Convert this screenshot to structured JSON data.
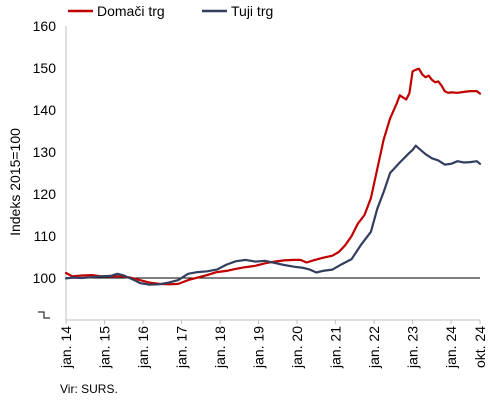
{
  "chart_data": {
    "type": "line",
    "ylabel": "Indeks 2015=100",
    "ylim": [
      90,
      160
    ],
    "yticks": [
      100,
      110,
      120,
      130,
      140,
      150,
      160
    ],
    "ytick_labels": [
      "100",
      "110",
      "120",
      "130",
      "140",
      "150",
      "160"
    ],
    "x_range": [
      "2014-01",
      "2024-10"
    ],
    "xtick_labels": [
      "jan. 14",
      "jan. 15",
      "jan. 16",
      "jan. 17",
      "jan. 18",
      "jan. 19",
      "jan. 20",
      "jan. 21",
      "jan. 22",
      "jan. 23",
      "jan. 24",
      "okt. 24"
    ],
    "xtick_dates": [
      "2014-01",
      "2015-01",
      "2016-01",
      "2017-01",
      "2018-01",
      "2019-01",
      "2020-01",
      "2021-01",
      "2022-01",
      "2023-01",
      "2024-01",
      "2024-10"
    ],
    "reference_line": 100,
    "axis_break": true,
    "legend_position": "top",
    "series": [
      {
        "name": "Domači trg",
        "color": "#C00000",
        "points": [
          [
            "2014-01",
            101.2
          ],
          [
            "2014-03",
            100.4
          ],
          [
            "2014-06",
            100.6
          ],
          [
            "2014-09",
            100.7
          ],
          [
            "2014-12",
            100.4
          ],
          [
            "2015-03",
            100.4
          ],
          [
            "2015-06",
            100.4
          ],
          [
            "2015-09",
            100.1
          ],
          [
            "2015-12",
            99.5
          ],
          [
            "2016-03",
            98.9
          ],
          [
            "2016-06",
            98.6
          ],
          [
            "2016-09",
            98.5
          ],
          [
            "2016-12",
            98.6
          ],
          [
            "2017-03",
            99.5
          ],
          [
            "2017-06",
            100.1
          ],
          [
            "2017-09",
            100.7
          ],
          [
            "2017-12",
            101.4
          ],
          [
            "2018-03",
            101.7
          ],
          [
            "2018-06",
            102.2
          ],
          [
            "2018-09",
            102.6
          ],
          [
            "2018-12",
            102.9
          ],
          [
            "2019-03",
            103.5
          ],
          [
            "2019-06",
            103.9
          ],
          [
            "2019-09",
            104.2
          ],
          [
            "2019-12",
            104.3
          ],
          [
            "2020-02",
            104.3
          ],
          [
            "2020-04",
            103.7
          ],
          [
            "2020-06",
            104.2
          ],
          [
            "2020-09",
            104.8
          ],
          [
            "2020-12",
            105.3
          ],
          [
            "2021-02",
            106.2
          ],
          [
            "2021-04",
            107.8
          ],
          [
            "2021-06",
            110.0
          ],
          [
            "2021-08",
            113.0
          ],
          [
            "2021-10",
            115.0
          ],
          [
            "2021-12",
            119.0
          ],
          [
            "2022-02",
            126.0
          ],
          [
            "2022-04",
            133.0
          ],
          [
            "2022-06",
            138.0
          ],
          [
            "2022-08",
            141.5
          ],
          [
            "2022-09",
            143.5
          ],
          [
            "2022-10",
            143.0
          ],
          [
            "2022-11",
            142.5
          ],
          [
            "2022-12",
            144.0
          ],
          [
            "2023-01",
            149.2
          ],
          [
            "2023-02",
            149.6
          ],
          [
            "2023-03",
            149.8
          ],
          [
            "2023-04",
            148.5
          ],
          [
            "2023-05",
            147.8
          ],
          [
            "2023-06",
            148.2
          ],
          [
            "2023-07",
            147.2
          ],
          [
            "2023-08",
            146.6
          ],
          [
            "2023-09",
            146.8
          ],
          [
            "2023-10",
            145.8
          ],
          [
            "2023-11",
            144.5
          ],
          [
            "2023-12",
            144.1
          ],
          [
            "2024-01",
            144.2
          ],
          [
            "2024-03",
            144.1
          ],
          [
            "2024-05",
            144.3
          ],
          [
            "2024-07",
            144.5
          ],
          [
            "2024-09",
            144.5
          ],
          [
            "2024-10",
            143.9
          ]
        ]
      },
      {
        "name": "Tuji trg",
        "color": "#333F5F",
        "points": [
          [
            "2014-01",
            99.9
          ],
          [
            "2014-03",
            100.1
          ],
          [
            "2014-06",
            100.0
          ],
          [
            "2014-09",
            100.2
          ],
          [
            "2014-12",
            100.4
          ],
          [
            "2015-03",
            100.5
          ],
          [
            "2015-05",
            101.0
          ],
          [
            "2015-07",
            100.6
          ],
          [
            "2015-10",
            99.6
          ],
          [
            "2015-12",
            98.8
          ],
          [
            "2016-03",
            98.4
          ],
          [
            "2016-06",
            98.5
          ],
          [
            "2016-09",
            98.9
          ],
          [
            "2016-12",
            99.5
          ],
          [
            "2017-03",
            101.0
          ],
          [
            "2017-06",
            101.4
          ],
          [
            "2017-09",
            101.6
          ],
          [
            "2017-12",
            102.0
          ],
          [
            "2018-03",
            103.2
          ],
          [
            "2018-06",
            104.0
          ],
          [
            "2018-09",
            104.3
          ],
          [
            "2018-12",
            103.9
          ],
          [
            "2019-03",
            104.1
          ],
          [
            "2019-06",
            103.6
          ],
          [
            "2019-09",
            103.1
          ],
          [
            "2019-12",
            102.7
          ],
          [
            "2020-03",
            102.4
          ],
          [
            "2020-05",
            102.0
          ],
          [
            "2020-07",
            101.3
          ],
          [
            "2020-09",
            101.7
          ],
          [
            "2020-12",
            102.0
          ],
          [
            "2021-03",
            103.3
          ],
          [
            "2021-06",
            104.5
          ],
          [
            "2021-09",
            108.0
          ],
          [
            "2021-12",
            111.0
          ],
          [
            "2022-02",
            116.5
          ],
          [
            "2022-04",
            120.5
          ],
          [
            "2022-06",
            125.0
          ],
          [
            "2022-09",
            127.5
          ],
          [
            "2022-12",
            129.8
          ],
          [
            "2023-01",
            130.5
          ],
          [
            "2023-02",
            131.5
          ],
          [
            "2023-03",
            130.8
          ],
          [
            "2023-05",
            129.5
          ],
          [
            "2023-07",
            128.5
          ],
          [
            "2023-09",
            128.0
          ],
          [
            "2023-11",
            127.0
          ],
          [
            "2024-01",
            127.2
          ],
          [
            "2024-03",
            127.8
          ],
          [
            "2024-05",
            127.5
          ],
          [
            "2024-07",
            127.6
          ],
          [
            "2024-09",
            127.8
          ],
          [
            "2024-10",
            127.2
          ]
        ]
      }
    ]
  },
  "source": "Vir: SURS."
}
